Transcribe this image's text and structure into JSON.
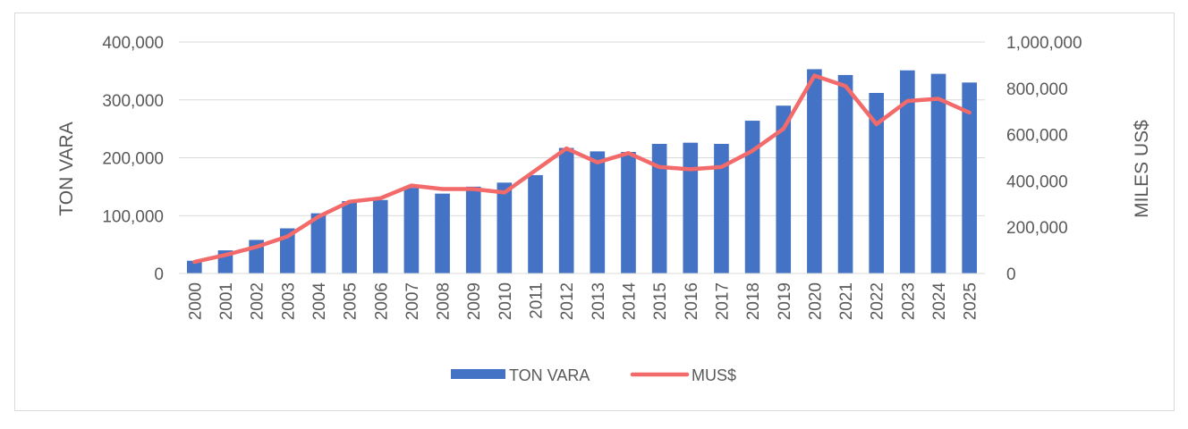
{
  "chart_data": {
    "type": "bar+line",
    "title": "",
    "categories": [
      "2000",
      "2001",
      "2002",
      "2003",
      "2004",
      "2005",
      "2006",
      "2007",
      "2008",
      "2009",
      "2010",
      "2011",
      "2012",
      "2013",
      "2014",
      "2015",
      "2016",
      "2017",
      "2018",
      "2019",
      "2020",
      "2021",
      "2022",
      "2023",
      "2024",
      "2025"
    ],
    "series": [
      {
        "name": "TON VARA",
        "type": "bar",
        "axis": "left",
        "color": "#4472c4",
        "values": [
          22000,
          40000,
          58000,
          78000,
          104000,
          125000,
          127000,
          148000,
          138000,
          150000,
          157000,
          170000,
          217000,
          211000,
          210000,
          224000,
          226000,
          224000,
          264000,
          290000,
          353000,
          343000,
          312000,
          351000,
          345000,
          330000
        ]
      },
      {
        "name": "MUS$",
        "type": "line",
        "axis": "right",
        "color": "#f26a6a",
        "values": [
          50000,
          80000,
          115000,
          160000,
          245000,
          310000,
          325000,
          380000,
          365000,
          365000,
          350000,
          445000,
          540000,
          480000,
          520000,
          460000,
          450000,
          460000,
          530000,
          625000,
          855000,
          810000,
          645000,
          745000,
          755000,
          695000
        ]
      }
    ],
    "ylabel": "TON VARA",
    "y2label": "MILES US$",
    "ylim": [
      0,
      400000
    ],
    "y2lim": [
      0,
      1000000
    ],
    "yticks": [
      "400,000",
      "300,000",
      "200,000",
      "100,000",
      "0"
    ],
    "y2ticks": [
      "1,000,000",
      "800,000",
      "600,000",
      "400,000",
      "200,000",
      "0"
    ],
    "grid": true,
    "legend_position": "bottom"
  }
}
